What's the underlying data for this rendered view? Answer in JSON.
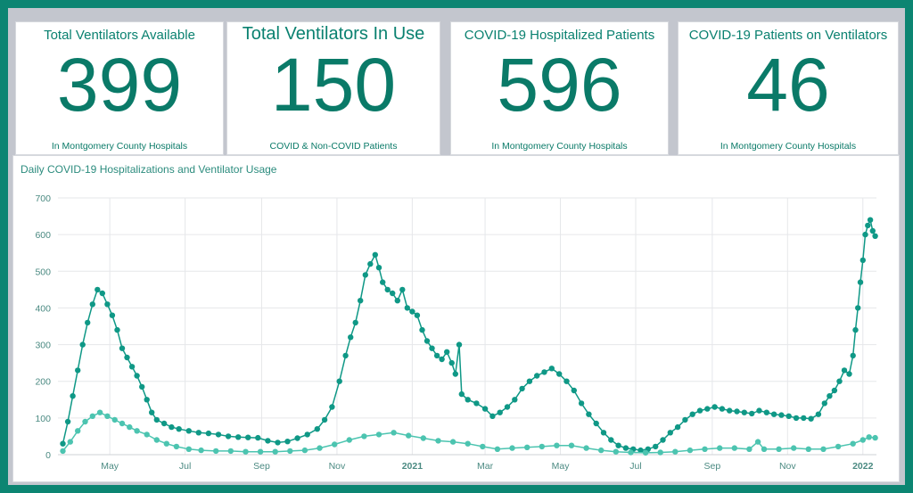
{
  "cards": [
    {
      "title": "Total Ventilators Available",
      "value": "399",
      "subtitle": "In Montgomery County Hospitals"
    },
    {
      "title": "Total Ventilators In Use",
      "value": "150",
      "subtitle": "COVID & Non-COVID Patients"
    },
    {
      "title": "COVID-19 Hospitalized Patients",
      "value": "596",
      "subtitle": "In Montgomery County Hospitals"
    },
    {
      "title": "COVID-19 Patients on Ventilators",
      "value": "46",
      "subtitle": "In Montgomery County Hospitals"
    }
  ],
  "colors": {
    "frame": "#0c8572",
    "background": "#c3c6ce",
    "hospitalized": "#0f9886",
    "ventilators": "#4cc4b0"
  },
  "chart_data": {
    "type": "line",
    "title": "Daily COVID-19 Hospitalizations and Ventilator Usage",
    "xlabel": "",
    "ylabel": "",
    "ylim": [
      0,
      700
    ],
    "yticks": [
      0,
      100,
      200,
      300,
      400,
      500,
      600,
      700
    ],
    "xlim": [
      "2020-03-20",
      "2022-01-12"
    ],
    "xticks": [
      {
        "date": "2020-05-01",
        "label": "May"
      },
      {
        "date": "2020-07-01",
        "label": "Jul"
      },
      {
        "date": "2020-09-01",
        "label": "Sep"
      },
      {
        "date": "2020-11-01",
        "label": "Nov"
      },
      {
        "date": "2021-01-01",
        "label": "2021"
      },
      {
        "date": "2021-03-01",
        "label": "Mar"
      },
      {
        "date": "2021-05-01",
        "label": "May"
      },
      {
        "date": "2021-07-01",
        "label": "Jul"
      },
      {
        "date": "2021-09-01",
        "label": "Sep"
      },
      {
        "date": "2021-11-01",
        "label": "Nov"
      },
      {
        "date": "2022-01-01",
        "label": "2022"
      }
    ],
    "grid": true,
    "markers": true,
    "series": [
      {
        "name": "",
        "color": "#0f9886",
        "points": [
          [
            "2020-03-24",
            30
          ],
          [
            "2020-03-28",
            90
          ],
          [
            "2020-04-01",
            160
          ],
          [
            "2020-04-05",
            230
          ],
          [
            "2020-04-09",
            300
          ],
          [
            "2020-04-13",
            360
          ],
          [
            "2020-04-17",
            410
          ],
          [
            "2020-04-21",
            450
          ],
          [
            "2020-04-25",
            440
          ],
          [
            "2020-04-29",
            410
          ],
          [
            "2020-05-03",
            380
          ],
          [
            "2020-05-07",
            340
          ],
          [
            "2020-05-11",
            290
          ],
          [
            "2020-05-15",
            265
          ],
          [
            "2020-05-19",
            240
          ],
          [
            "2020-05-23",
            215
          ],
          [
            "2020-05-27",
            185
          ],
          [
            "2020-05-31",
            150
          ],
          [
            "2020-06-04",
            115
          ],
          [
            "2020-06-08",
            95
          ],
          [
            "2020-06-14",
            85
          ],
          [
            "2020-06-20",
            75
          ],
          [
            "2020-06-26",
            70
          ],
          [
            "2020-07-04",
            65
          ],
          [
            "2020-07-12",
            60
          ],
          [
            "2020-07-20",
            58
          ],
          [
            "2020-07-28",
            55
          ],
          [
            "2020-08-05",
            50
          ],
          [
            "2020-08-13",
            48
          ],
          [
            "2020-08-21",
            47
          ],
          [
            "2020-08-29",
            46
          ],
          [
            "2020-09-06",
            38
          ],
          [
            "2020-09-14",
            33
          ],
          [
            "2020-09-22",
            36
          ],
          [
            "2020-09-30",
            45
          ],
          [
            "2020-10-08",
            55
          ],
          [
            "2020-10-16",
            70
          ],
          [
            "2020-10-22",
            95
          ],
          [
            "2020-10-28",
            130
          ],
          [
            "2020-11-03",
            200
          ],
          [
            "2020-11-08",
            270
          ],
          [
            "2020-11-12",
            320
          ],
          [
            "2020-11-16",
            360
          ],
          [
            "2020-11-20",
            420
          ],
          [
            "2020-11-24",
            490
          ],
          [
            "2020-11-28",
            520
          ],
          [
            "2020-12-02",
            545
          ],
          [
            "2020-12-05",
            510
          ],
          [
            "2020-12-08",
            470
          ],
          [
            "2020-12-12",
            450
          ],
          [
            "2020-12-16",
            440
          ],
          [
            "2020-12-20",
            420
          ],
          [
            "2020-12-24",
            450
          ],
          [
            "2020-12-28",
            400
          ],
          [
            "2021-01-01",
            390
          ],
          [
            "2021-01-05",
            380
          ],
          [
            "2021-01-09",
            340
          ],
          [
            "2021-01-13",
            310
          ],
          [
            "2021-01-17",
            290
          ],
          [
            "2021-01-21",
            270
          ],
          [
            "2021-01-25",
            260
          ],
          [
            "2021-01-29",
            280
          ],
          [
            "2021-02-02",
            250
          ],
          [
            "2021-02-05",
            220
          ],
          [
            "2021-02-08",
            300
          ],
          [
            "2021-02-10",
            165
          ],
          [
            "2021-02-15",
            150
          ],
          [
            "2021-02-22",
            140
          ],
          [
            "2021-03-01",
            125
          ],
          [
            "2021-03-07",
            105
          ],
          [
            "2021-03-13",
            115
          ],
          [
            "2021-03-19",
            130
          ],
          [
            "2021-03-25",
            150
          ],
          [
            "2021-03-31",
            180
          ],
          [
            "2021-04-06",
            200
          ],
          [
            "2021-04-12",
            215
          ],
          [
            "2021-04-18",
            225
          ],
          [
            "2021-04-24",
            235
          ],
          [
            "2021-04-30",
            220
          ],
          [
            "2021-05-06",
            200
          ],
          [
            "2021-05-12",
            175
          ],
          [
            "2021-05-18",
            140
          ],
          [
            "2021-05-24",
            110
          ],
          [
            "2021-05-30",
            85
          ],
          [
            "2021-06-05",
            60
          ],
          [
            "2021-06-11",
            40
          ],
          [
            "2021-06-17",
            25
          ],
          [
            "2021-06-23",
            18
          ],
          [
            "2021-06-29",
            15
          ],
          [
            "2021-07-05",
            12
          ],
          [
            "2021-07-11",
            15
          ],
          [
            "2021-07-17",
            22
          ],
          [
            "2021-07-23",
            40
          ],
          [
            "2021-07-29",
            60
          ],
          [
            "2021-08-04",
            75
          ],
          [
            "2021-08-10",
            95
          ],
          [
            "2021-08-16",
            110
          ],
          [
            "2021-08-22",
            120
          ],
          [
            "2021-08-28",
            125
          ],
          [
            "2021-09-03",
            130
          ],
          [
            "2021-09-09",
            125
          ],
          [
            "2021-09-15",
            120
          ],
          [
            "2021-09-21",
            118
          ],
          [
            "2021-09-27",
            115
          ],
          [
            "2021-10-03",
            112
          ],
          [
            "2021-10-09",
            120
          ],
          [
            "2021-10-15",
            115
          ],
          [
            "2021-10-21",
            110
          ],
          [
            "2021-10-27",
            108
          ],
          [
            "2021-11-02",
            105
          ],
          [
            "2021-11-08",
            100
          ],
          [
            "2021-11-14",
            100
          ],
          [
            "2021-11-20",
            98
          ],
          [
            "2021-11-26",
            110
          ],
          [
            "2021-12-01",
            140
          ],
          [
            "2021-12-05",
            160
          ],
          [
            "2021-12-09",
            175
          ],
          [
            "2021-12-13",
            200
          ],
          [
            "2021-12-17",
            230
          ],
          [
            "2021-12-21",
            220
          ],
          [
            "2021-12-24",
            270
          ],
          [
            "2021-12-26",
            340
          ],
          [
            "2021-12-28",
            400
          ],
          [
            "2021-12-30",
            470
          ],
          [
            "2022-01-01",
            530
          ],
          [
            "2022-01-03",
            600
          ],
          [
            "2022-01-05",
            625
          ],
          [
            "2022-01-07",
            640
          ],
          [
            "2022-01-09",
            610
          ],
          [
            "2022-01-11",
            596
          ]
        ]
      },
      {
        "name": "",
        "color": "#4cc4b0",
        "points": [
          [
            "2020-03-24",
            10
          ],
          [
            "2020-03-30",
            35
          ],
          [
            "2020-04-05",
            65
          ],
          [
            "2020-04-11",
            90
          ],
          [
            "2020-04-17",
            105
          ],
          [
            "2020-04-23",
            115
          ],
          [
            "2020-04-29",
            105
          ],
          [
            "2020-05-05",
            95
          ],
          [
            "2020-05-11",
            85
          ],
          [
            "2020-05-17",
            75
          ],
          [
            "2020-05-23",
            65
          ],
          [
            "2020-05-31",
            55
          ],
          [
            "2020-06-08",
            40
          ],
          [
            "2020-06-16",
            30
          ],
          [
            "2020-06-24",
            22
          ],
          [
            "2020-07-04",
            15
          ],
          [
            "2020-07-14",
            12
          ],
          [
            "2020-07-26",
            10
          ],
          [
            "2020-08-07",
            10
          ],
          [
            "2020-08-19",
            8
          ],
          [
            "2020-08-31",
            8
          ],
          [
            "2020-09-12",
            8
          ],
          [
            "2020-09-24",
            10
          ],
          [
            "2020-10-06",
            12
          ],
          [
            "2020-10-18",
            18
          ],
          [
            "2020-10-30",
            28
          ],
          [
            "2020-11-11",
            40
          ],
          [
            "2020-11-23",
            50
          ],
          [
            "2020-12-05",
            55
          ],
          [
            "2020-12-17",
            60
          ],
          [
            "2020-12-29",
            52
          ],
          [
            "2021-01-10",
            45
          ],
          [
            "2021-01-22",
            38
          ],
          [
            "2021-02-03",
            35
          ],
          [
            "2021-02-15",
            30
          ],
          [
            "2021-02-27",
            22
          ],
          [
            "2021-03-11",
            15
          ],
          [
            "2021-03-23",
            18
          ],
          [
            "2021-04-04",
            20
          ],
          [
            "2021-04-16",
            22
          ],
          [
            "2021-04-28",
            25
          ],
          [
            "2021-05-10",
            25
          ],
          [
            "2021-05-22",
            18
          ],
          [
            "2021-06-03",
            12
          ],
          [
            "2021-06-15",
            8
          ],
          [
            "2021-06-27",
            6
          ],
          [
            "2021-07-09",
            5
          ],
          [
            "2021-07-21",
            6
          ],
          [
            "2021-08-02",
            8
          ],
          [
            "2021-08-14",
            12
          ],
          [
            "2021-08-26",
            15
          ],
          [
            "2021-09-07",
            18
          ],
          [
            "2021-09-19",
            18
          ],
          [
            "2021-10-01",
            15
          ],
          [
            "2021-10-08",
            35
          ],
          [
            "2021-10-13",
            15
          ],
          [
            "2021-10-25",
            15
          ],
          [
            "2021-11-06",
            18
          ],
          [
            "2021-11-18",
            15
          ],
          [
            "2021-11-30",
            15
          ],
          [
            "2021-12-12",
            22
          ],
          [
            "2021-12-24",
            30
          ],
          [
            "2022-01-01",
            40
          ],
          [
            "2022-01-06",
            48
          ],
          [
            "2022-01-11",
            46
          ]
        ]
      }
    ]
  }
}
